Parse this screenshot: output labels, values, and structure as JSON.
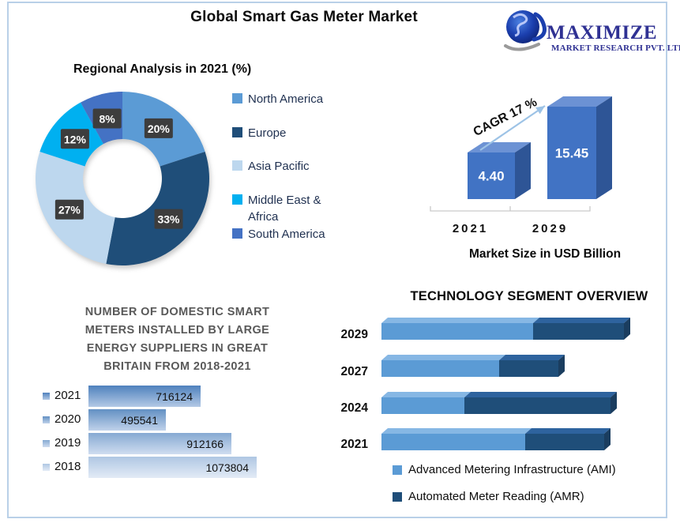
{
  "header": {
    "title": "Global Smart Gas Meter Market"
  },
  "logo": {
    "name": "MAXIMIZE",
    "subtitle": "MARKET RESEARCH PVT. LTD."
  },
  "chart_data": [
    {
      "id": "regional_analysis",
      "type": "pie",
      "donut": true,
      "title": "Regional Analysis in 2021 (%)",
      "labels": [
        "North America",
        "Europe",
        "Asia Pacific",
        "Middle East & Africa",
        "South America"
      ],
      "legend_labels": [
        "North America",
        "Europe",
        "Asia Pacific",
        "Middle East &\nAfrica",
        "South America"
      ],
      "values": [
        20,
        33,
        27,
        12,
        8
      ],
      "data_labels": [
        "20%",
        "33%",
        "27%",
        "12%",
        "8%"
      ],
      "colors": [
        "#5B9BD5",
        "#1F4E79",
        "#BDD7EE",
        "#00B0F0",
        "#4472C4"
      ],
      "label_box_color": "#3d3d3d",
      "label_text_color": "#ffffff",
      "legend_position": "right"
    },
    {
      "id": "market_size",
      "type": "bar",
      "categories": [
        "2021",
        "2029"
      ],
      "values": [
        4.4,
        15.45
      ],
      "value_labels": [
        "4.40",
        "15.45"
      ],
      "annotation": "CAGR 17 %",
      "xlabel": "Market Size in USD Billion",
      "bar_front_color": "#4173C4",
      "bar_top_color": "#6C92D4",
      "bar_side_color": "#2E5596",
      "arrow_color": "#9DC3E6",
      "ylim": [
        0,
        16
      ]
    },
    {
      "id": "gb_smart_meters",
      "type": "bar",
      "orientation": "horizontal",
      "title": "NUMBER OF DOMESTIC SMART\nMETERS INSTALLED BY LARGE\nENERGY SUPPLIERS IN GREAT\nBRITAIN FROM 2018-2021",
      "categories": [
        "2021",
        "2020",
        "2019",
        "2018"
      ],
      "values": [
        716124,
        495541,
        912166,
        1073804
      ],
      "value_labels": [
        "716124",
        "495541",
        "912166",
        "1073804"
      ],
      "bar_gradients": [
        [
          "#4F81BD",
          "#B3C9E5"
        ],
        [
          "#6290C3",
          "#C0D2EA"
        ],
        [
          "#86A9D2",
          "#CFDDF0"
        ],
        [
          "#AFC7E3",
          "#E3EBF6"
        ]
      ],
      "grid": false
    },
    {
      "id": "technology_segment",
      "type": "bar",
      "orientation": "horizontal",
      "stacked": true,
      "title": "TECHNOLOGY SEGMENT OVERVIEW",
      "categories": [
        "2029",
        "2027",
        "2024",
        "2021"
      ],
      "series": [
        {
          "name": "Advanced Metering Infrastructure (AMI)",
          "color": "#5B9BD5",
          "top_color": "#86B7E4",
          "values": [
            192,
            149,
            105,
            182
          ]
        },
        {
          "name": "Automated Meter Reading (AMR)",
          "color": "#1F4E79",
          "top_color": "#2E639E",
          "values": [
            115,
            75,
            185,
            100
          ]
        }
      ],
      "end_cap_color": "#1A3D5F",
      "units": "relative share, no axis shown in source",
      "legend_position": "bottom",
      "grid": false
    }
  ]
}
